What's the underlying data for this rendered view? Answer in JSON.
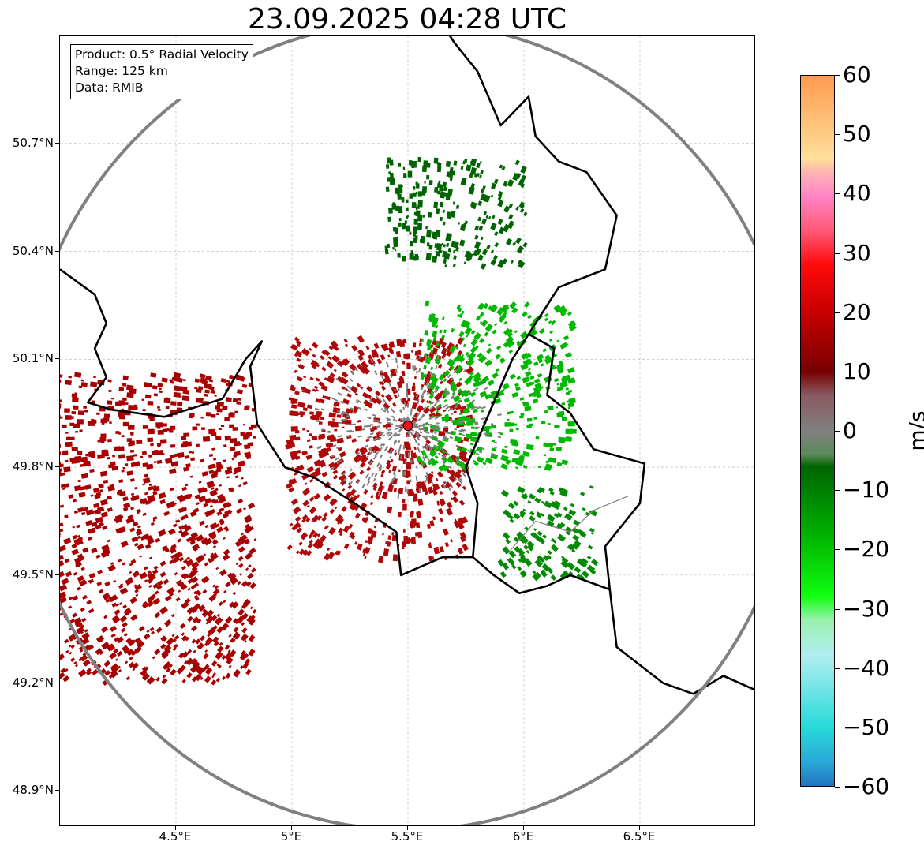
{
  "title": "23.09.2025 04:28 UTC",
  "info_box": {
    "product": "Product: 0.5° Radial Velocity",
    "range": "Range: 125 km",
    "data": "Data: RMIB"
  },
  "map": {
    "lon_range": [
      4.0,
      7.0
    ],
    "lat_range": [
      48.8,
      51.0
    ],
    "radar_site": {
      "lon": 5.5,
      "lat": 49.915
    },
    "range_ring_km": 125,
    "gridlines": true,
    "lat_ticks": [
      {
        "value": 50.7,
        "label": "50.7°N"
      },
      {
        "value": 50.4,
        "label": "50.4°N"
      },
      {
        "value": 50.1,
        "label": "50.1°N"
      },
      {
        "value": 49.8,
        "label": "49.8°N"
      },
      {
        "value": 49.5,
        "label": "49.5°N"
      },
      {
        "value": 49.2,
        "label": "49.2°N"
      },
      {
        "value": 48.9,
        "label": "48.9°N"
      }
    ],
    "lon_ticks": [
      {
        "value": 4.5,
        "label": "4.5°E"
      },
      {
        "value": 5.0,
        "label": "5°E"
      },
      {
        "value": 5.5,
        "label": "5.5°E"
      },
      {
        "value": 6.0,
        "label": "6°E"
      },
      {
        "value": 6.5,
        "label": "6.5°E"
      }
    ],
    "colors": {
      "border": "#000000",
      "province": "#808080",
      "ring": "#808080",
      "radar_marker": "#e8141c",
      "grid": "#b0b0b0"
    },
    "echo_regions": [
      {
        "name": "outbound-west",
        "color": "#a80000",
        "lon": [
          4.0,
          4.85
        ],
        "lat": [
          49.2,
          50.05
        ]
      },
      {
        "name": "outbound-southwest",
        "color": "#b00808",
        "lon": [
          5.0,
          5.75
        ],
        "lat": [
          49.55,
          50.15
        ]
      },
      {
        "name": "inbound-east",
        "color": "#00b800",
        "lon": [
          5.55,
          6.2
        ],
        "lat": [
          49.8,
          50.25
        ]
      },
      {
        "name": "inbound-northeast-band",
        "color": "#006400",
        "lon": [
          5.4,
          6.0
        ],
        "lat": [
          50.35,
          50.65
        ]
      },
      {
        "name": "inbound-southeast",
        "color": "#058a05",
        "lon": [
          5.9,
          6.3
        ],
        "lat": [
          49.5,
          49.75
        ]
      }
    ]
  },
  "colorbar": {
    "label": "m/s",
    "min": -60,
    "max": 60,
    "ticks": [
      "60",
      "50",
      "40",
      "30",
      "20",
      "10",
      "0",
      "−10",
      "−20",
      "−30",
      "−40",
      "−50",
      "−60"
    ],
    "tick_values": [
      60,
      50,
      40,
      30,
      20,
      10,
      0,
      -10,
      -20,
      -30,
      -40,
      -50,
      -60
    ],
    "stops": [
      {
        "v": 60,
        "c": "#ff9a50"
      },
      {
        "v": 52,
        "c": "#ffc27a"
      },
      {
        "v": 46,
        "c": "#ffe09a"
      },
      {
        "v": 44,
        "c": "#ffb8b0"
      },
      {
        "v": 40,
        "c": "#ff88c8"
      },
      {
        "v": 34,
        "c": "#ff5a7a"
      },
      {
        "v": 28,
        "c": "#ff0a0a"
      },
      {
        "v": 20,
        "c": "#c80000"
      },
      {
        "v": 10,
        "c": "#780000"
      },
      {
        "v": 6,
        "c": "#8a5a62"
      },
      {
        "v": 0,
        "c": "#808080"
      },
      {
        "v": -4,
        "c": "#5a8a5a"
      },
      {
        "v": -6,
        "c": "#006400"
      },
      {
        "v": -18,
        "c": "#00b400"
      },
      {
        "v": -28,
        "c": "#10ff10"
      },
      {
        "v": -32,
        "c": "#9af0b0"
      },
      {
        "v": -38,
        "c": "#b0eef0"
      },
      {
        "v": -50,
        "c": "#28dada"
      },
      {
        "v": -56,
        "c": "#2aa8d8"
      },
      {
        "v": -60,
        "c": "#2274c0"
      }
    ]
  }
}
